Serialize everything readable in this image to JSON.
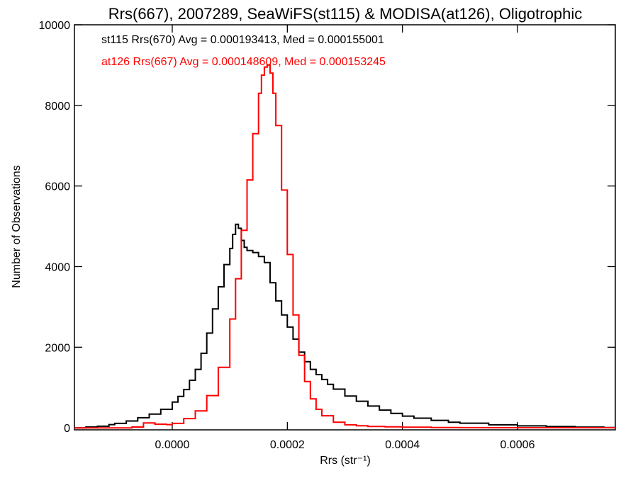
{
  "chart_data": {
    "type": "line",
    "title": "Rrs(667), 2007289, SeaWiFS(st115) & MODISA(at126), Oligotrophic",
    "xlabel": "Rrs (str⁻¹)",
    "ylabel": "Number of Observations",
    "xlim": [
      -0.00017,
      0.00077
    ],
    "ylim": [
      -50,
      10000
    ],
    "xticks": [
      0.0,
      0.0002,
      0.0004,
      0.0006
    ],
    "xtick_labels": [
      "0.0000",
      "0.0002",
      "0.0004",
      "0.0006"
    ],
    "yticks": [
      0,
      2000,
      4000,
      6000,
      8000,
      10000
    ],
    "ytick_labels": [
      "0",
      "2000",
      "4000",
      "6000",
      "8000",
      "10000"
    ],
    "grid": false,
    "annotations": [
      {
        "text": "st115 Rrs(670) Avg = 0.000193413, Med = 0.000155001",
        "color": "#000000"
      },
      {
        "text": "at126 Rrs(667) Avg = 0.000148609, Med = 0.000153245",
        "color": "#ff0000"
      }
    ],
    "series": [
      {
        "name": "st115 Rrs(670)",
        "color": "#000000",
        "style": "step",
        "x": [
          -0.00017,
          -0.00015,
          -0.00013,
          -0.00011,
          -0.0001,
          -8e-05,
          -6e-05,
          -4e-05,
          -2e-05,
          0.0,
          1e-05,
          2e-05,
          3e-05,
          4e-05,
          5e-05,
          6e-05,
          7e-05,
          8e-05,
          9e-05,
          0.0001,
          0.000105,
          0.00011,
          0.000115,
          0.00012,
          0.000125,
          0.00013,
          0.00014,
          0.00015,
          0.00016,
          0.00017,
          0.00018,
          0.00019,
          0.0002,
          0.00021,
          0.00022,
          0.00023,
          0.00024,
          0.00025,
          0.00026,
          0.00027,
          0.00028,
          0.0003,
          0.00032,
          0.00034,
          0.00036,
          0.00038,
          0.0004,
          0.00042,
          0.00045,
          0.00048,
          0.0005,
          0.00055,
          0.0006,
          0.00065,
          0.0007,
          0.00075,
          0.00077
        ],
        "values": [
          0,
          20,
          40,
          80,
          110,
          170,
          250,
          340,
          460,
          640,
          780,
          950,
          1180,
          1450,
          1850,
          2350,
          2950,
          3500,
          4050,
          4450,
          4800,
          5050,
          4950,
          4650,
          4480,
          4400,
          4350,
          4250,
          4100,
          3600,
          3150,
          2800,
          2500,
          2200,
          1880,
          1640,
          1450,
          1320,
          1200,
          1080,
          960,
          790,
          660,
          540,
          440,
          360,
          290,
          240,
          185,
          140,
          115,
          75,
          48,
          30,
          18,
          8,
          4
        ]
      },
      {
        "name": "at126 Rrs(667)",
        "color": "#ff0000",
        "style": "step",
        "x": [
          -0.00017,
          -0.0001,
          -7e-05,
          -5e-05,
          -3e-05,
          -1e-05,
          0.0,
          2e-05,
          4e-05,
          6e-05,
          8e-05,
          0.0001,
          0.00011,
          0.00012,
          0.00013,
          0.00014,
          0.00015,
          0.000155,
          0.00016,
          0.000165,
          0.00017,
          0.000175,
          0.00018,
          0.00019,
          0.0002,
          0.00021,
          0.00022,
          0.00023,
          0.00024,
          0.00025,
          0.00026,
          0.00028,
          0.0003,
          0.00032,
          0.00034,
          0.00037,
          0.0004,
          0.00045,
          0.0005,
          0.00055,
          0.00077
        ],
        "values": [
          0,
          0,
          20,
          120,
          90,
          80,
          110,
          230,
          420,
          800,
          1500,
          2700,
          3700,
          4900,
          6150,
          7300,
          8300,
          8750,
          8950,
          9000,
          8800,
          8300,
          7500,
          5900,
          4300,
          2800,
          1800,
          1150,
          720,
          460,
          300,
          140,
          75,
          50,
          35,
          25,
          15,
          8,
          5,
          3,
          0
        ]
      }
    ]
  }
}
